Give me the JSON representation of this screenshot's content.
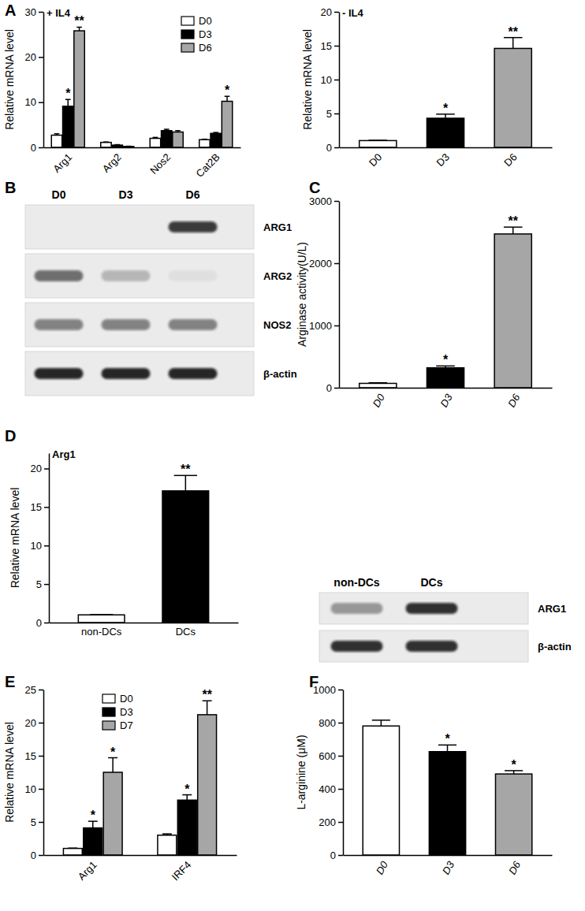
{
  "chart_data": [
    {
      "panel": "A",
      "type": "bar",
      "title": "+ IL4",
      "y_label": "Relative mRNA level",
      "categories": [
        "Arg1",
        "Arg2",
        "Nos2",
        "Cat2B"
      ],
      "ylim": [
        0,
        30
      ],
      "yticks": [
        0,
        10,
        20,
        30
      ],
      "legend": "top-right",
      "series": [
        {
          "name": "D0",
          "color": "#ffffff",
          "values": [
            2.7,
            1.1,
            2.0,
            1.7
          ],
          "errors": [
            0.3,
            0.1,
            0.2,
            0.1
          ],
          "stars": [
            null,
            null,
            null,
            null
          ]
        },
        {
          "name": "D3",
          "color": "#000000",
          "values": [
            9.1,
            0.5,
            3.7,
            3.1
          ],
          "errors": [
            1.5,
            0.1,
            0.3,
            0.2
          ],
          "stars": [
            "*",
            null,
            null,
            null
          ]
        },
        {
          "name": "D6",
          "color": "#a6a6a6",
          "values": [
            25.8,
            0.2,
            3.4,
            10.2
          ],
          "errors": [
            0.8,
            0.05,
            0.3,
            1.1
          ],
          "stars": [
            "**",
            null,
            null,
            "*"
          ]
        }
      ]
    },
    {
      "type": "bar",
      "title": "- IL4",
      "y_label": "Relative mRNA level",
      "categories": [
        "D0",
        "D3",
        "D6"
      ],
      "ylim": [
        0,
        20
      ],
      "yticks": [
        0,
        5,
        10,
        15,
        20
      ],
      "series": [
        {
          "colors": [
            "#ffffff",
            "#000000",
            "#a6a6a6"
          ],
          "values": [
            1.0,
            4.3,
            14.6
          ],
          "errors": [
            0.05,
            0.6,
            1.6
          ],
          "stars": [
            null,
            "*",
            "**"
          ]
        }
      ]
    },
    {
      "panel": "B",
      "type": "blot",
      "lanes": [
        "D0",
        "D3",
        "D6"
      ],
      "rows": [
        {
          "name": "ARG1",
          "intensity": [
            0,
            0,
            0.85
          ]
        },
        {
          "name": "ARG2",
          "intensity": [
            0.6,
            0.25,
            0.05
          ]
        },
        {
          "name": "NOS2",
          "intensity": [
            0.5,
            0.5,
            0.5
          ]
        },
        {
          "name": "β-actin",
          "intensity": [
            0.95,
            0.95,
            0.95
          ]
        }
      ]
    },
    {
      "panel": "C",
      "type": "bar",
      "y_label": "Arginase activity(U/L)",
      "categories": [
        "D0",
        "D3",
        "D6"
      ],
      "ylim": [
        0,
        3000
      ],
      "yticks": [
        0,
        1000,
        2000,
        3000
      ],
      "series": [
        {
          "colors": [
            "#ffffff",
            "#000000",
            "#a6a6a6"
          ],
          "values": [
            70,
            320,
            2470
          ],
          "errors": [
            10,
            30,
            110
          ],
          "stars": [
            null,
            "*",
            "**"
          ]
        }
      ]
    },
    {
      "panel": "D",
      "type": "bar",
      "title": "Arg1",
      "y_label": "Relative mRNA level",
      "categories": [
        "non-DCs",
        "DCs"
      ],
      "ylim": [
        0,
        22
      ],
      "yticks": [
        0,
        5,
        10,
        15,
        20
      ],
      "series": [
        {
          "colors": [
            "#ffffff",
            "#000000"
          ],
          "values": [
            1.0,
            17.1
          ],
          "errors": [
            0.05,
            2.0
          ],
          "stars": [
            null,
            "**"
          ]
        }
      ]
    },
    {
      "type": "blot",
      "lanes": [
        "non-DCs",
        "DCs"
      ],
      "rows": [
        {
          "name": "ARG1",
          "intensity": [
            0.4,
            0.9
          ]
        },
        {
          "name": "β-actin",
          "intensity": [
            0.9,
            0.9
          ]
        }
      ]
    },
    {
      "panel": "E",
      "type": "bar",
      "y_label": "Relative mRNA level",
      "categories": [
        "Arg1",
        "IRF4"
      ],
      "ylim": [
        0,
        25
      ],
      "yticks": [
        0,
        5,
        10,
        15,
        20,
        25
      ],
      "legend": "top-left",
      "series": [
        {
          "name": "D0",
          "color": "#ffffff",
          "values": [
            1.0,
            3.0
          ],
          "errors": [
            0.05,
            0.2
          ],
          "stars": [
            null,
            null
          ]
        },
        {
          "name": "D3",
          "color": "#000000",
          "values": [
            4.1,
            8.3
          ],
          "errors": [
            1.0,
            0.8
          ],
          "stars": [
            "*",
            "*"
          ]
        },
        {
          "name": "D7",
          "color": "#a6a6a6",
          "values": [
            12.5,
            21.2
          ],
          "errors": [
            2.2,
            2.1
          ],
          "stars": [
            "*",
            "**"
          ]
        }
      ]
    },
    {
      "panel": "F",
      "type": "bar",
      "y_label": "L-arginine (μM)",
      "categories": [
        "D0",
        "D3",
        "D6"
      ],
      "ylim": [
        0,
        1000
      ],
      "yticks": [
        0,
        200,
        400,
        600,
        800,
        1000
      ],
      "series": [
        {
          "colors": [
            "#ffffff",
            "#000000",
            "#a6a6a6"
          ],
          "values": [
            780,
            625,
            490
          ],
          "errors": [
            35,
            40,
            20
          ],
          "stars": [
            null,
            "*",
            "*"
          ]
        }
      ]
    }
  ]
}
